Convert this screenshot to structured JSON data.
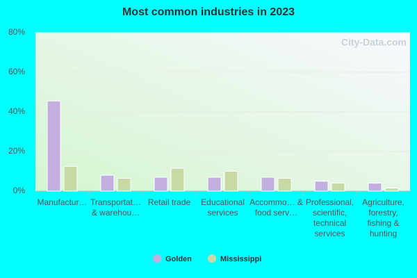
{
  "chart_data": {
    "type": "bar",
    "title": "Most common industries in 2023",
    "watermark": "City-Data.com",
    "categories": [
      "Manufactur…",
      "Transportat… & warehou…",
      "Retail trade",
      "Educational services",
      "Accommo… & food serv…",
      "Professional, scientific, technical services",
      "Agriculture, forestry, fishing & hunting"
    ],
    "series": [
      {
        "name": "Golden",
        "color": "#c3aee0",
        "values": [
          45.5,
          8,
          7,
          7,
          7,
          5,
          4
        ]
      },
      {
        "name": "Mississippi",
        "color": "#c9d9a6",
        "values": [
          12.5,
          6.5,
          11.5,
          10,
          6.5,
          4,
          1.5
        ]
      }
    ],
    "ylim": [
      0,
      80
    ],
    "yticks": [
      {
        "value": 0,
        "label": "0%"
      },
      {
        "value": 20,
        "label": "20%"
      },
      {
        "value": 40,
        "label": "40%"
      },
      {
        "value": 60,
        "label": "60%"
      },
      {
        "value": 80,
        "label": "80%"
      }
    ],
    "grid": true,
    "legend": "bottom"
  }
}
